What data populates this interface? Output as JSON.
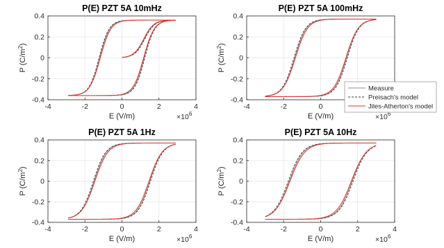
{
  "colors": {
    "measure": "#8c8c8c",
    "preisach": "#3a3a3a",
    "jiles_atherton": "#e8322e",
    "grid": "#e6e6e6",
    "axes": "#262626"
  },
  "legend": {
    "placement": "right, between top-right and bottom-right panels",
    "entries": [
      {
        "label": "Measure",
        "color": "#8c8c8c",
        "dash": "solid"
      },
      {
        "label": "Preisach's model",
        "color": "#3a3a3a",
        "dash": "dashed"
      },
      {
        "label": "Jiles-Atherton's model",
        "color": "#e8322e",
        "dash": "solid"
      }
    ]
  },
  "chart_data": [
    {
      "type": "line",
      "title": "P(E) PZT 5A 10mHz",
      "xlabel": "E (V/m)",
      "ylabel": "P (C/m2)",
      "ylabel_base": "P (C/m",
      "ylabel_sup": "2",
      "ylabel_tail": ")",
      "x_multiplier": "×10",
      "x_multiplier_exp": "6",
      "xlim": [
        -4000000,
        4000000
      ],
      "ylim": [
        -0.4,
        0.4
      ],
      "xticks": [
        -4000000,
        -2000000,
        0,
        2000000,
        4000000
      ],
      "xticklabels": [
        "-4",
        "-2",
        "0",
        "2",
        "4"
      ],
      "yticks": [
        -0.4,
        -0.2,
        0,
        0.2,
        0.4
      ],
      "yticklabels": [
        "-0.4",
        "-0.2",
        "0",
        "0.2",
        "0.4"
      ],
      "grid": true,
      "loop": {
        "emax": 2900000,
        "ec": 1200000,
        "ps": 0.36,
        "ns": 5
      },
      "initial_curve": true,
      "series": [
        {
          "name": "Measure"
        },
        {
          "name": "Preisach's model"
        },
        {
          "name": "Jiles-Atherton's model"
        }
      ]
    },
    {
      "type": "line",
      "title": "P(E) PZT 5A 100mHz",
      "xlabel": "E (V/m)",
      "ylabel": "P (C/m2)",
      "ylabel_base": "P (C/m",
      "ylabel_sup": "2",
      "ylabel_tail": ")",
      "x_multiplier": "×10",
      "x_multiplier_exp": "6",
      "xlim": [
        -4000000,
        4000000
      ],
      "ylim": [
        -0.4,
        0.4
      ],
      "xticks": [
        -4000000,
        -2000000,
        0,
        2000000,
        4000000
      ],
      "xticklabels": [
        "-4",
        "-2",
        "0",
        "2",
        "4"
      ],
      "yticks": [
        -0.4,
        -0.2,
        0,
        0.2,
        0.4
      ],
      "yticklabels": [
        "-0.4",
        "-0.2",
        "0",
        "0.2",
        "0.4"
      ],
      "grid": true,
      "loop": {
        "emax": 3000000,
        "ec": 1400000,
        "ps": 0.37,
        "ns": 5
      },
      "initial_curve": false,
      "series": [
        {
          "name": "Measure"
        },
        {
          "name": "Preisach's model"
        },
        {
          "name": "Jiles-Atherton's model"
        }
      ]
    },
    {
      "type": "line",
      "title": "P(E) PZT 5A 1Hz",
      "xlabel": "E (V/m)",
      "ylabel": "P (C/m2)",
      "ylabel_base": "P (C/m",
      "ylabel_sup": "2",
      "ylabel_tail": ")",
      "x_multiplier": "×10",
      "x_multiplier_exp": "6",
      "xlim": [
        -4000000,
        4000000
      ],
      "ylim": [
        -0.4,
        0.4
      ],
      "xticks": [
        -4000000,
        -2000000,
        0,
        2000000,
        4000000
      ],
      "xticklabels": [
        "-4",
        "-2",
        "0",
        "2",
        "4"
      ],
      "yticks": [
        -0.4,
        -0.2,
        0,
        0.2,
        0.4
      ],
      "yticklabels": [
        "-0.4",
        "-0.2",
        "0",
        "0.2",
        "0.4"
      ],
      "grid": true,
      "loop": {
        "emax": 2900000,
        "ec": 1500000,
        "ps": 0.37,
        "ns": 5
      },
      "initial_curve": false,
      "series": [
        {
          "name": "Measure"
        },
        {
          "name": "Preisach's model"
        },
        {
          "name": "Jiles-Atherton's model"
        }
      ]
    },
    {
      "type": "line",
      "title": "P(E) PZT 5A 10Hz",
      "xlabel": "E (V/m)",
      "ylabel": "P (C/m2)",
      "ylabel_base": "P (C/m",
      "ylabel_sup": "2",
      "ylabel_tail": ")",
      "x_multiplier": "×10",
      "x_multiplier_exp": "6",
      "xlim": [
        -4000000,
        4000000
      ],
      "ylim": [
        -0.4,
        0.4
      ],
      "xticks": [
        -4000000,
        -2000000,
        0,
        2000000,
        4000000
      ],
      "xticklabels": [
        "-4",
        "-2",
        "0",
        "2",
        "4"
      ],
      "yticks": [
        -0.4,
        -0.2,
        0,
        0.2,
        0.4
      ],
      "yticklabels": [
        "-0.4",
        "-0.2",
        "0",
        "0.2",
        "0.4"
      ],
      "grid": true,
      "loop": {
        "emax": 3000000,
        "ec": 1700000,
        "ps": 0.37,
        "ns": 5
      },
      "initial_curve": false,
      "series": [
        {
          "name": "Measure"
        },
        {
          "name": "Preisach's model"
        },
        {
          "name": "Jiles-Atherton's model"
        }
      ]
    }
  ]
}
